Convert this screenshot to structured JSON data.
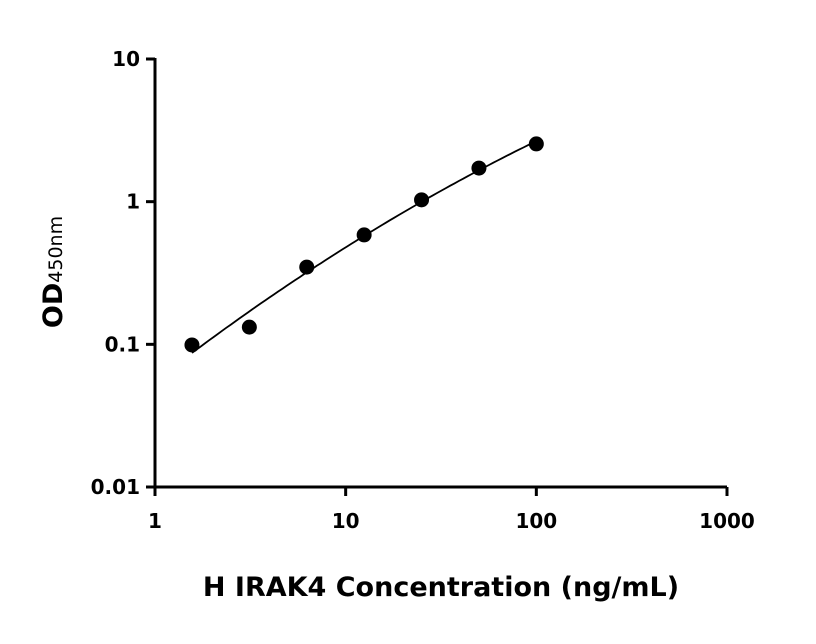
{
  "chart_data": {
    "type": "scatter",
    "title": "",
    "xlabel": "H IRAK4 Concentration (ng/mL)",
    "ylabel_main": "OD",
    "ylabel_sub": "450nm",
    "xscale": "log",
    "yscale": "log",
    "xlim": [
      1,
      1000
    ],
    "ylim": [
      0.01,
      10
    ],
    "xticks": [
      "1",
      "10",
      "100",
      "1000"
    ],
    "yticks": [
      "0.01",
      "0.1",
      "1",
      "10"
    ],
    "grid": false,
    "legend": "none",
    "fit_curve": true,
    "series": [
      {
        "x": [
          1.5625,
          3.125,
          6.25,
          12.5,
          25,
          50,
          100
        ],
        "y": [
          0.099,
          0.132,
          0.348,
          0.585,
          1.03,
          1.72,
          2.54
        ]
      }
    ],
    "colors": {
      "marker": "#000000",
      "line": "#000000"
    }
  }
}
